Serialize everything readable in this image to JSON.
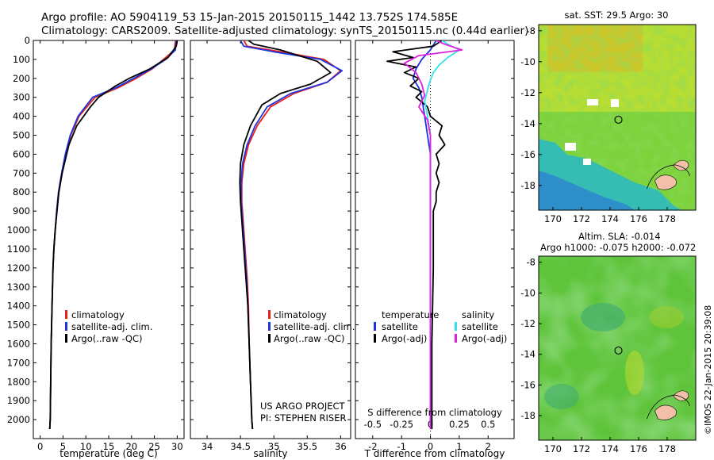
{
  "header": {
    "line1": "Argo profile: AO 5904119_53 15-Jan-2015 20150115_1442 13.752S 174.585E",
    "line2": "Climatology: CARS2009. Satellite-adjusted climatology: synTS_20150115.nc (0.44d earlier)"
  },
  "side_stamp": "©IMOS 22-Jan-2015 20:39:08",
  "colors": {
    "climatology": "#e8201c",
    "satellite": "#1f32e0",
    "argo": "#000000",
    "sal_satellite": "#33e2e8",
    "sal_argo": "#e020e0"
  },
  "chart_data": [
    {
      "type": "line",
      "xlabel": "temperature (deg C)",
      "ylabel": "",
      "xlim": [
        -1.5,
        31.5
      ],
      "ylim": [
        2100,
        0
      ],
      "xticks": [
        0,
        5,
        10,
        15,
        20,
        25,
        30
      ],
      "yticks": [
        0,
        100,
        200,
        300,
        400,
        500,
        600,
        700,
        800,
        900,
        1000,
        1100,
        1200,
        1300,
        1400,
        1500,
        1600,
        1700,
        1800,
        1900,
        2000
      ],
      "legend": [
        "climatology",
        "satellite-adj. clim.",
        "Argo(..raw -QC)"
      ],
      "series": [
        {
          "name": "climatology",
          "color": "#e8201c",
          "x": [
            29.6,
            29.4,
            27.0,
            24.5,
            21.0,
            17.0,
            12.0,
            8.5,
            6.7,
            5.6,
            4.8,
            4.1,
            3.6,
            3.3,
            3.0,
            2.8,
            2.6,
            2.4,
            2.3,
            2.2,
            2.1
          ],
          "y": [
            0,
            50,
            100,
            150,
            200,
            250,
            300,
            400,
            500,
            600,
            700,
            800,
            900,
            1000,
            1100,
            1200,
            1400,
            1600,
            1800,
            2000,
            2050
          ]
        },
        {
          "name": "satellite-adj. clim.",
          "color": "#1f32e0",
          "x": [
            29.8,
            29.6,
            27.5,
            24.3,
            20.5,
            16.5,
            11.5,
            8.3,
            6.6,
            5.5,
            4.7,
            4.0,
            3.6,
            3.3,
            3.0,
            2.8,
            2.6,
            2.4,
            2.3,
            2.2,
            2.1
          ],
          "y": [
            0,
            50,
            100,
            150,
            200,
            250,
            300,
            400,
            500,
            600,
            700,
            800,
            900,
            1000,
            1100,
            1200,
            1400,
            1600,
            1800,
            2000,
            2050
          ]
        },
        {
          "name": "Argo(..raw -QC)",
          "color": "#000000",
          "x": [
            30.0,
            29.8,
            28.0,
            24.0,
            19.5,
            16.5,
            12.8,
            11.0,
            8.0,
            6.3,
            5.6,
            4.8,
            4.1,
            3.7,
            3.3,
            3.0,
            2.8,
            2.6,
            2.4,
            2.3,
            2.2,
            2.1
          ],
          "y": [
            0,
            30,
            90,
            150,
            200,
            240,
            300,
            350,
            450,
            550,
            620,
            700,
            800,
            900,
            1000,
            1100,
            1200,
            1400,
            1600,
            1800,
            2000,
            2050
          ]
        }
      ]
    },
    {
      "type": "line",
      "xlabel": "salinity",
      "ylabel": "",
      "xlim": [
        33.75,
        36.15
      ],
      "ylim": [
        2100,
        0
      ],
      "xticks": [
        34,
        34.5,
        35,
        35.5,
        36
      ],
      "legend": [
        "climatology",
        "satellite-adj. clim.",
        "Argo(..raw -QC)"
      ],
      "annotation": [
        "US ARGO PROJECT",
        "PI: STEPHEN RISER"
      ],
      "series": [
        {
          "name": "climatology",
          "color": "#e8201c",
          "x": [
            34.55,
            34.6,
            35.1,
            35.75,
            36.0,
            35.8,
            35.3,
            34.95,
            34.75,
            34.62,
            34.55,
            34.52,
            34.52,
            34.54,
            34.57,
            34.6,
            34.62,
            34.63,
            34.65,
            34.67,
            34.68
          ],
          "y": [
            0,
            30,
            60,
            100,
            160,
            220,
            280,
            350,
            450,
            550,
            650,
            750,
            850,
            950,
            1100,
            1250,
            1400,
            1600,
            1800,
            2000,
            2050
          ]
        },
        {
          "name": "satellite-adj. clim.",
          "color": "#1f32e0",
          "x": [
            34.5,
            34.55,
            35.0,
            35.7,
            36.02,
            35.8,
            35.25,
            34.9,
            34.72,
            34.6,
            34.53,
            34.51,
            34.51,
            34.53,
            34.56,
            34.59,
            34.61,
            34.63,
            34.65,
            34.67,
            34.68
          ],
          "y": [
            0,
            30,
            60,
            100,
            160,
            220,
            280,
            350,
            450,
            550,
            650,
            750,
            850,
            950,
            1100,
            1250,
            1400,
            1600,
            1800,
            2000,
            2050
          ]
        },
        {
          "name": "Argo(..raw -QC)",
          "color": "#000000",
          "x": [
            34.62,
            34.7,
            35.1,
            35.65,
            35.85,
            35.55,
            35.1,
            34.82,
            34.65,
            34.55,
            34.5,
            34.49,
            34.5,
            34.52,
            34.55,
            34.58,
            34.61,
            34.63,
            34.65,
            34.67,
            34.68
          ],
          "y": [
            0,
            20,
            50,
            110,
            170,
            230,
            280,
            340,
            450,
            550,
            650,
            750,
            850,
            950,
            1100,
            1250,
            1400,
            1600,
            1800,
            2000,
            2050
          ]
        }
      ]
    },
    {
      "type": "line",
      "xlabel": "T difference from climatology",
      "xlabel_top": "S difference from climatology",
      "ylabel": "",
      "xlim": [
        -2.6,
        2.9
      ],
      "ylim": [
        2100,
        0
      ],
      "xticks": [
        -2,
        -1,
        0,
        1,
        2
      ],
      "xticks_top": [
        -0.5,
        -0.25,
        0,
        0.25,
        0.5
      ],
      "legend_groups": [
        {
          "title": "temperature",
          "entries": [
            "satellite",
            "Argo(-adj)"
          ]
        },
        {
          "title": "salinity",
          "entries": [
            "satellite",
            "Argo(-adj)"
          ]
        }
      ],
      "series": [
        {
          "name": "temperature satellite",
          "color": "#1f32e0",
          "x": [
            0.2,
            0.0,
            -0.3,
            -0.5,
            -0.6,
            -0.4,
            -0.3,
            -0.2,
            -0.1,
            0.0,
            0.0,
            0.0,
            0.0,
            0.0,
            0.0,
            0.0,
            0.0,
            0.0,
            0.0,
            0.0,
            0.0
          ],
          "y": [
            0,
            50,
            100,
            150,
            200,
            250,
            300,
            400,
            500,
            600,
            700,
            800,
            900,
            1000,
            1100,
            1200,
            1400,
            1600,
            1800,
            2000,
            2050
          ]
        },
        {
          "name": "temperature Argo(-adj)",
          "color": "#000000",
          "x": [
            0.4,
            0.1,
            -1.3,
            -0.6,
            -1.5,
            -0.5,
            -0.9,
            -0.4,
            -0.7,
            -0.3,
            -0.5,
            -0.1,
            0.0,
            0.4,
            0.3,
            0.5,
            0.2,
            0.3,
            0.2,
            0.3,
            0.2,
            0.2,
            0.1,
            0.1,
            0.1,
            0.05,
            0.05
          ],
          "y": [
            0,
            30,
            60,
            90,
            110,
            140,
            170,
            200,
            240,
            270,
            300,
            350,
            400,
            450,
            500,
            550,
            600,
            650,
            700,
            750,
            800,
            850,
            900,
            1000,
            1200,
            1600,
            2050
          ]
        },
        {
          "name": "salinity satellite",
          "color": "#33e2e8",
          "x": [
            0.4,
            0.6,
            1.0,
            0.6,
            0.3,
            0.1,
            0.0,
            -0.1,
            -0.2,
            -0.1,
            0.0,
            0.0,
            0.0,
            0.0,
            0.0,
            0.0,
            0.0,
            0.0
          ],
          "y": [
            0,
            20,
            50,
            90,
            130,
            170,
            210,
            260,
            320,
            400,
            500,
            600,
            800,
            1000,
            1200,
            1500,
            1800,
            2050
          ]
        },
        {
          "name": "salinity Argo(-adj)",
          "color": "#e020e0",
          "x": [
            0.2,
            0.5,
            1.1,
            -0.4,
            -0.9,
            -0.5,
            -0.3,
            -0.2,
            -0.4,
            -0.1,
            0.0,
            0.0,
            0.0,
            0.0,
            0.0,
            0.0,
            0.0
          ],
          "y": [
            0,
            20,
            50,
            80,
            120,
            170,
            230,
            290,
            350,
            420,
            500,
            600,
            800,
            1000,
            1300,
            1700,
            2050
          ]
        }
      ]
    },
    {
      "type": "heatmap",
      "title": "sat. SST: 29.5 Argo: 30",
      "xlim": [
        169,
        180
      ],
      "ylim": [
        -19.6,
        -7.6
      ],
      "xticks": [
        170,
        172,
        174,
        176,
        178
      ],
      "yticks": [
        -8,
        -10,
        -12,
        -14,
        -16,
        -18
      ],
      "argo_position": {
        "lon": 174.585,
        "lat": -13.752
      }
    },
    {
      "type": "heatmap",
      "title": "Altim. SLA: -0.014",
      "subtitle": "Argo h1000: -0.075 h2000: -0.072",
      "xlim": [
        169,
        180
      ],
      "ylim": [
        -19.6,
        -7.6
      ],
      "xticks": [
        170,
        172,
        174,
        176,
        178
      ],
      "yticks": [
        -8,
        -10,
        -12,
        -14,
        -16,
        -18
      ],
      "argo_position": {
        "lon": 174.585,
        "lat": -13.752
      }
    }
  ]
}
